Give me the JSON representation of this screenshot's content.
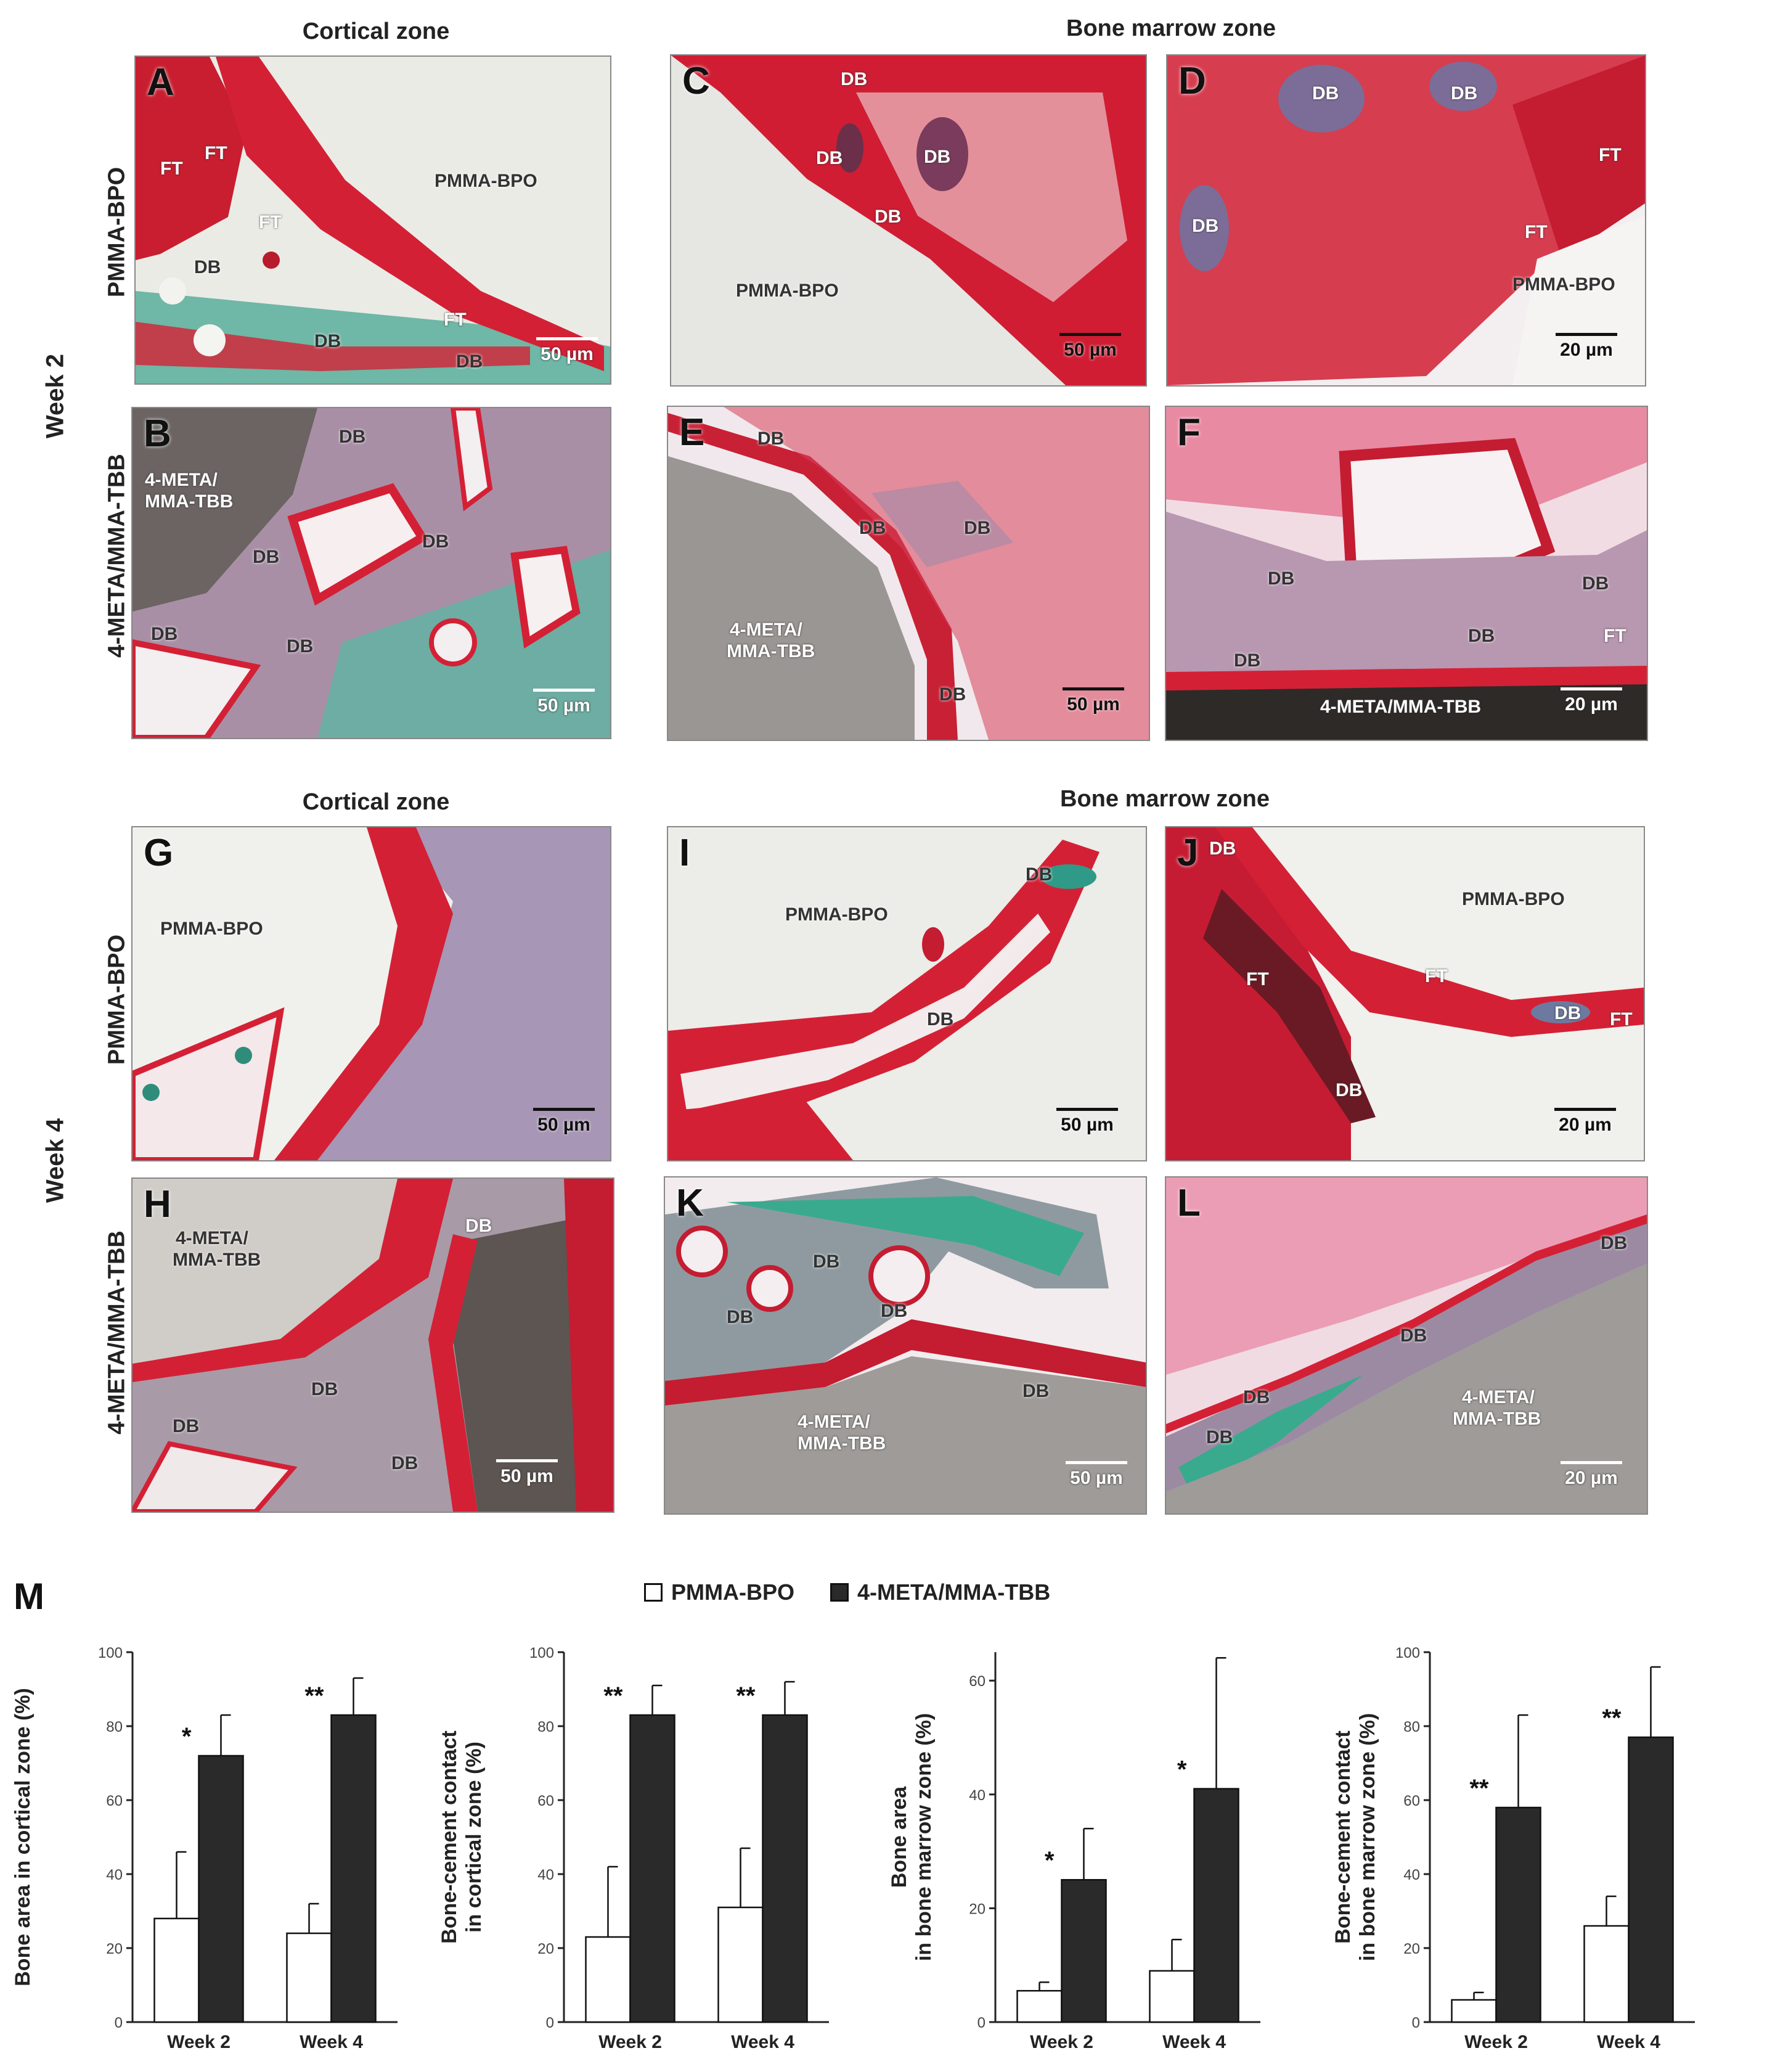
{
  "headers": {
    "cortical_top": "Cortical zone",
    "marrow_top": "Bone marrow zone",
    "cortical_bottom": "Cortical zone",
    "marrow_bottom": "Bone marrow zone"
  },
  "weeks": {
    "w2": "Week 2",
    "w4": "Week 4"
  },
  "rows": {
    "pmma": "PMMA-BPO",
    "meta": "4-META/MMA-TBB"
  },
  "panels": {
    "A": {
      "letter": "A",
      "scale": "50 µm",
      "labels": [
        "FT",
        "FT",
        "FT",
        "DB",
        "PMMA-BPO",
        "DB",
        "FT",
        "DB"
      ]
    },
    "B": {
      "letter": "B",
      "scale": "50 µm",
      "labels": [
        "4-META/",
        "MMA-TBB",
        "DB",
        "DB",
        "DB",
        "DB",
        "DB"
      ]
    },
    "C": {
      "letter": "C",
      "scale": "50 µm",
      "labels": [
        "DB",
        "DB",
        "DB",
        "DB",
        "PMMA-BPO"
      ]
    },
    "D": {
      "letter": "D",
      "scale": "20 µm",
      "labels": [
        "DB",
        "DB",
        "DB",
        "FT",
        "FT",
        "PMMA-BPO"
      ]
    },
    "E": {
      "letter": "E",
      "scale": "50 µm",
      "labels": [
        "DB",
        "DB",
        "DB",
        "4-META/",
        "MMA-TBB",
        "DB"
      ]
    },
    "F": {
      "letter": "F",
      "scale": "20 µm",
      "labels": [
        "DB",
        "DB",
        "DB",
        "DB",
        "FT",
        "4-META/MMA-TBB"
      ]
    },
    "G": {
      "letter": "G",
      "scale": "50 µm",
      "labels": [
        "PMMA-BPO"
      ]
    },
    "H": {
      "letter": "H",
      "scale": "50 µm",
      "labels": [
        "4-META/",
        "MMA-TBB",
        "DB",
        "DB",
        "DB",
        "DB"
      ]
    },
    "I": {
      "letter": "I",
      "scale": "50 µm",
      "labels": [
        "PMMA-BPO",
        "DB",
        "DB"
      ]
    },
    "J": {
      "letter": "J",
      "scale": "20 µm",
      "labels": [
        "DB",
        "PMMA-BPO",
        "FT",
        "FT",
        "DB",
        "FT",
        "DB"
      ]
    },
    "K": {
      "letter": "K",
      "scale": "50 µm",
      "labels": [
        "DB",
        "DB",
        "DB",
        "4-META/",
        "MMA-TBB",
        "DB"
      ]
    },
    "L": {
      "letter": "L",
      "scale": "20 µm",
      "labels": [
        "DB",
        "DB",
        "DB",
        "DB",
        "4-META/",
        "MMA-TBB"
      ]
    }
  },
  "M_label": "M",
  "legend": {
    "pmma": "PMMA-BPO",
    "meta": "4-META/MMA-TBB"
  },
  "colors": {
    "pmma": "#ffffff",
    "meta": "#2a2a2a",
    "stain_red": "#d42035",
    "stain_green": "#4bb3a0"
  },
  "chart_data": [
    {
      "type": "bar",
      "ylabel": "Bone area in cortical zone (%)",
      "categories": [
        "Week 2",
        "Week 4"
      ],
      "ylim": [
        0,
        100
      ],
      "yticks": [
        0,
        20,
        40,
        60,
        80,
        100
      ],
      "series": [
        {
          "name": "PMMA-BPO",
          "values": [
            28,
            24
          ],
          "errors": [
            18,
            8
          ]
        },
        {
          "name": "4-META/MMA-TBB",
          "values": [
            72,
            83
          ],
          "errors": [
            11,
            10
          ]
        }
      ],
      "significance": [
        "*",
        "**"
      ]
    },
    {
      "type": "bar",
      "ylabel": "Bone-cement contact in cortical zone (%)",
      "categories": [
        "Week 2",
        "Week 4"
      ],
      "ylim": [
        0,
        100
      ],
      "yticks": [
        0,
        20,
        40,
        60,
        80,
        100
      ],
      "series": [
        {
          "name": "PMMA-BPO",
          "values": [
            23,
            31
          ],
          "errors": [
            19,
            16
          ]
        },
        {
          "name": "4-META/MMA-TBB",
          "values": [
            83,
            83
          ],
          "errors": [
            8,
            9
          ]
        }
      ],
      "significance": [
        "**",
        "**"
      ]
    },
    {
      "type": "bar",
      "ylabel": "Bone area in bone marrow zone (%)",
      "categories": [
        "Week 2",
        "Week 4"
      ],
      "ylim": [
        0,
        65
      ],
      "yticks": [
        0,
        20,
        40,
        60
      ],
      "series": [
        {
          "name": "PMMA-BPO",
          "values": [
            5.5,
            9
          ],
          "errors": [
            1.5,
            5.5
          ]
        },
        {
          "name": "4-META/MMA-TBB",
          "values": [
            25,
            41
          ],
          "errors": [
            9,
            23
          ]
        }
      ],
      "significance": [
        "*",
        "*"
      ]
    },
    {
      "type": "bar",
      "ylabel": "Bone-cement contact in bone marrow zone (%)",
      "categories": [
        "Week 2",
        "Week 4"
      ],
      "ylim": [
        0,
        100
      ],
      "yticks": [
        0,
        20,
        40,
        60,
        80,
        100
      ],
      "series": [
        {
          "name": "PMMA-BPO",
          "values": [
            6,
            26
          ],
          "errors": [
            2,
            8
          ]
        },
        {
          "name": "4-META/MMA-TBB",
          "values": [
            58,
            77
          ],
          "errors": [
            25,
            19
          ]
        }
      ],
      "significance": [
        "**",
        "**"
      ]
    }
  ]
}
